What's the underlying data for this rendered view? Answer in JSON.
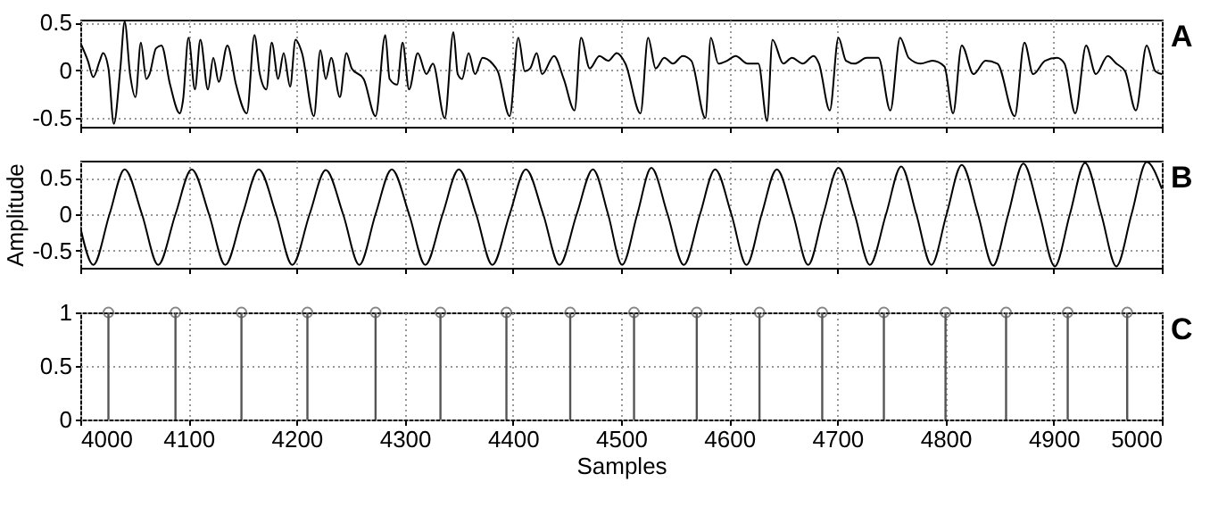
{
  "chart_data": [
    {
      "type": "line",
      "color": "#000000",
      "annotations": [
        "A"
      ],
      "xlim": [
        4000,
        5000
      ],
      "xticks": [
        4000,
        4100,
        4200,
        4300,
        4400,
        4500,
        4600,
        4700,
        4800,
        4900,
        5000
      ],
      "ylim": [
        -0.59,
        0.53
      ],
      "yticks": [
        -0.5,
        0,
        0.5
      ],
      "grid": true,
      "tick_labels": "y",
      "x": [
        4000,
        4007,
        4012,
        4018,
        4021,
        4026,
        4031,
        4037,
        4041,
        4046,
        4051,
        4056,
        4061,
        4064,
        4070,
        4075,
        4083,
        4092,
        4095,
        4100,
        4106,
        4111,
        4118,
        4123,
        4128,
        4136,
        4144,
        4154,
        4161,
        4166,
        4172,
        4177,
        4183,
        4188,
        4194,
        4199,
        4205,
        4216,
        4222,
        4227,
        4232,
        4240,
        4246,
        4251,
        4262,
        4273,
        4282,
        4286,
        4293,
        4298,
        4304,
        4312,
        4320,
        4326,
        4337,
        4345,
        4349,
        4353,
        4359,
        4365,
        4372,
        4381,
        4386,
        4397,
        4405,
        4411,
        4416,
        4422,
        4427,
        4438,
        4447,
        4457,
        4463,
        4471,
        4480,
        4488,
        4496,
        4504,
        4518,
        4525,
        4532,
        4540,
        4548,
        4557,
        4565,
        4578,
        4583,
        4590,
        4598,
        4606,
        4617,
        4627,
        4635,
        4640,
        4650,
        4658,
        4668,
        4678,
        4683,
        4693,
        4701,
        4708,
        4716,
        4727,
        4738,
        4749,
        4758,
        4766,
        4777,
        4788,
        4799,
        4807,
        4815,
        4826,
        4837,
        4848,
        4864,
        4873,
        4881,
        4892,
        4903,
        4910,
        4920,
        4930,
        4939,
        4950,
        4958,
        4966,
        4976,
        4986,
        4994,
        5000
      ],
      "values": [
        0.29,
        0.1,
        -0.07,
        0.1,
        0.18,
        0.02,
        -0.56,
        0.02,
        0.51,
        -0.04,
        -0.28,
        0.29,
        -0.09,
        -0.04,
        0.23,
        0.26,
        -0.15,
        -0.45,
        -0.31,
        0.34,
        -0.2,
        0.32,
        -0.2,
        0.13,
        -0.12,
        0.26,
        -0.15,
        -0.45,
        0.37,
        -0.04,
        -0.2,
        0.29,
        -0.09,
        0.18,
        -0.17,
        0.32,
        0.18,
        -0.48,
        0.21,
        -0.09,
        0.13,
        -0.28,
        0.18,
        0.02,
        -0.09,
        -0.48,
        0.37,
        -0.09,
        -0.15,
        0.29,
        -0.2,
        0.18,
        -0.04,
        0.07,
        -0.5,
        0.4,
        -0.04,
        -0.09,
        0.18,
        -0.04,
        0.13,
        0.07,
        -0.01,
        -0.48,
        0.34,
        -0.01,
        0.02,
        0.18,
        -0.04,
        0.15,
        -0.09,
        -0.42,
        0.34,
        0.02,
        0.15,
        0.1,
        0.18,
        0.07,
        -0.45,
        0.34,
        0.02,
        0.13,
        0.07,
        0.15,
        0.1,
        -0.5,
        0.34,
        0.07,
        0.1,
        0.15,
        0.07,
        0.07,
        -0.53,
        0.32,
        0.07,
        0.13,
        0.07,
        0.15,
        0.07,
        -0.42,
        0.34,
        0.1,
        0.07,
        0.13,
        0.13,
        -0.42,
        0.34,
        0.13,
        0.07,
        0.1,
        0.04,
        -0.45,
        0.26,
        -0.04,
        0.1,
        0.07,
        -0.48,
        0.29,
        -0.04,
        0.1,
        0.13,
        0.07,
        -0.45,
        0.26,
        -0.04,
        0.15,
        0.07,
        -0.01,
        -0.42,
        0.26,
        -0.01,
        -0.04
      ]
    },
    {
      "type": "line",
      "color": "#000000",
      "annotations": [
        "B"
      ],
      "ylabel": "Amplitude",
      "xlim": [
        4000,
        5000
      ],
      "xticks": [
        4000,
        4100,
        4200,
        4300,
        4400,
        4500,
        4600,
        4700,
        4800,
        4900,
        5000
      ],
      "ylim": [
        -0.74,
        0.74
      ],
      "yticks": [
        -0.5,
        0,
        0.5
      ],
      "grid": true,
      "tick_labels": "y",
      "x": [
        4000,
        4012,
        4027,
        4041,
        4057,
        4072,
        4088,
        4103,
        4119,
        4134,
        4150,
        4165,
        4181,
        4196,
        4212,
        4227,
        4243,
        4258,
        4273,
        4288,
        4304,
        4319,
        4335,
        4350,
        4366,
        4381,
        4397,
        4412,
        4428,
        4443,
        4459,
        4474,
        4488,
        4501,
        4515,
        4528,
        4543,
        4558,
        4573,
        4587,
        4602,
        4616,
        4630,
        4644,
        4659,
        4673,
        4687,
        4701,
        4716,
        4730,
        4745,
        4759,
        4773,
        4787,
        4801,
        4815,
        4830,
        4844,
        4858,
        4872,
        4887,
        4901,
        4915,
        4929,
        4944,
        4958,
        4972,
        4986,
        5000
      ],
      "values": [
        -0.18,
        -0.7,
        0,
        0.62,
        0,
        -0.7,
        0,
        0.62,
        0,
        -0.7,
        0,
        0.62,
        0,
        -0.7,
        0,
        0.61,
        0,
        -0.7,
        0,
        0.62,
        0,
        -0.7,
        0,
        0.62,
        0,
        -0.7,
        0,
        0.62,
        0,
        -0.7,
        0,
        0.62,
        0,
        -0.7,
        0,
        0.64,
        0,
        -0.7,
        0,
        0.62,
        0,
        -0.7,
        0,
        0.62,
        0,
        -0.7,
        0,
        0.64,
        0,
        -0.7,
        0,
        0.66,
        0,
        -0.7,
        0,
        0.68,
        0,
        -0.71,
        0,
        0.7,
        0,
        -0.72,
        0,
        0.71,
        0,
        -0.72,
        0,
        0.72,
        0.35
      ]
    },
    {
      "type": "lollipop",
      "color": "#555555",
      "marker": "circle",
      "annotations": [
        "C"
      ],
      "xlabel": "Samples",
      "xlim": [
        4000,
        5000
      ],
      "xticks": [
        4000,
        4100,
        4200,
        4300,
        4400,
        4500,
        4600,
        4700,
        4800,
        4900,
        5000
      ],
      "ylim": [
        0,
        1
      ],
      "yticks": [
        0,
        0.5,
        1
      ],
      "grid": true,
      "x": [
        4026,
        4088,
        4149,
        4210,
        4273,
        4333,
        4394,
        4453,
        4512,
        4570,
        4628,
        4686,
        4743,
        4800,
        4856,
        4913,
        4968
      ],
      "values": [
        1,
        1,
        1,
        1,
        1,
        1,
        1,
        1,
        1,
        1,
        1,
        1,
        1,
        1,
        1,
        1,
        1
      ]
    }
  ]
}
